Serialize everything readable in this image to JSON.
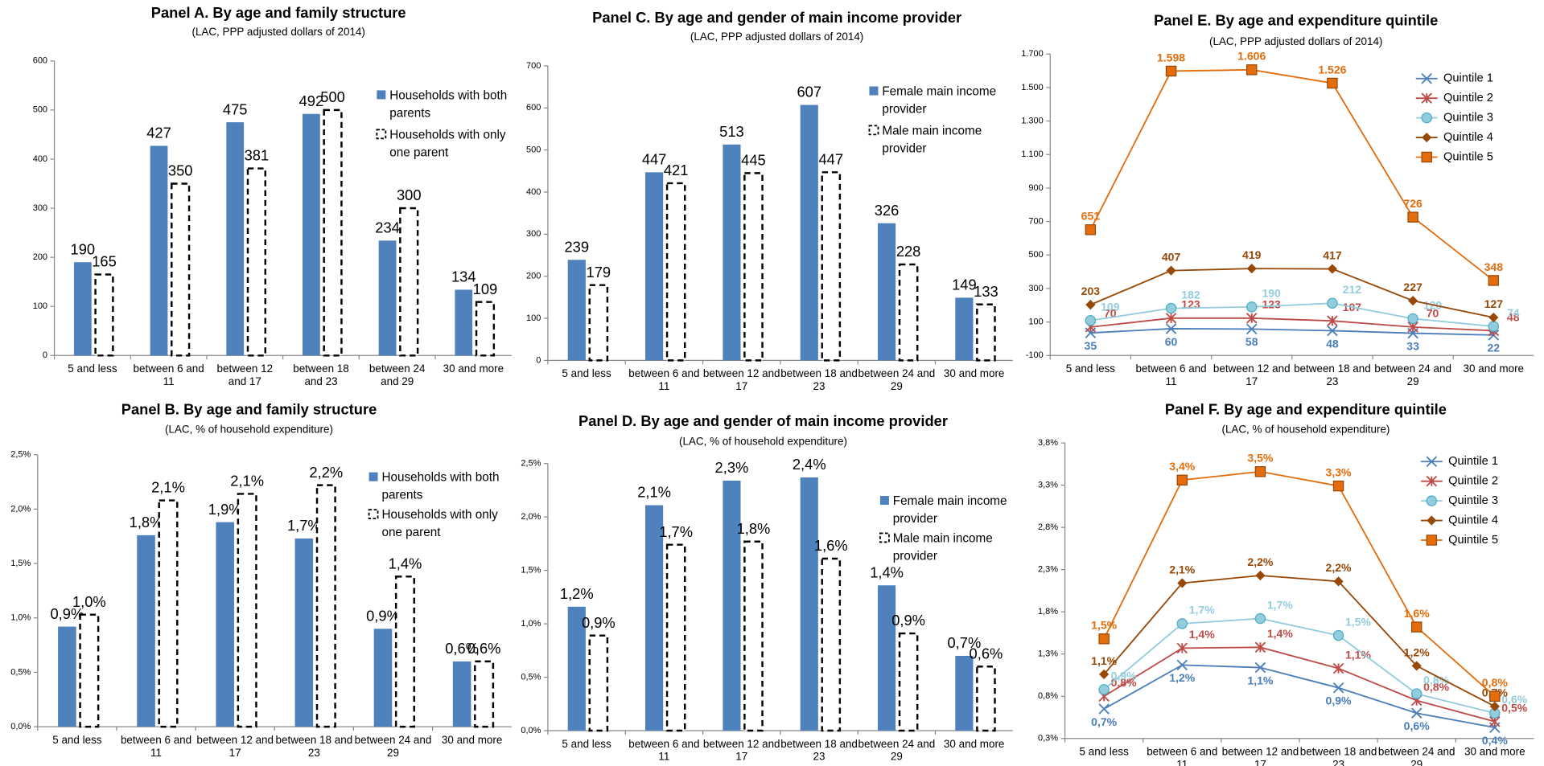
{
  "chart_data": [
    {
      "type": "bar",
      "title": "Panel A.   By age and family structure",
      "subtitle": "(LAC, PPP adjusted dollars of 2014)",
      "categories": [
        "5 and less",
        "between 6 and 11",
        "between 12 and 17",
        "between 18 and 23",
        "between 24 and 29",
        "30 and more"
      ],
      "series": [
        {
          "name": "Households with both parents",
          "color": "#4f81bd",
          "values": [
            190,
            427,
            475,
            492,
            234,
            134
          ]
        },
        {
          "name": "Households with only one parent",
          "color": "#ffffff",
          "edge": "dashed",
          "values": [
            165,
            350,
            381,
            500,
            300,
            109
          ]
        }
      ],
      "ylim": [
        0,
        600
      ],
      "yticks": [
        0,
        100,
        200,
        300,
        400,
        500,
        600
      ],
      "legend": "upper right"
    },
    {
      "type": "bar",
      "title": "Panel B. By age and family structure",
      "subtitle": "(LAC, % of household expenditure)",
      "categories": [
        "5 and less",
        "between 6 and 11",
        "between 12 and 17",
        "between 18 and 23",
        "between 24 and 29",
        "30 and more"
      ],
      "series": [
        {
          "name": "Households with both parents",
          "color": "#4f81bd",
          "values": [
            0.92,
            1.76,
            1.88,
            1.73,
            0.9,
            0.6
          ],
          "value_labels": [
            "0,9%",
            "1,8%",
            "1,9%",
            "1,7%",
            "0,9%",
            "0,6%"
          ]
        },
        {
          "name": "Households with only one parent",
          "color": "#ffffff",
          "edge": "dashed",
          "values": [
            1.03,
            2.08,
            2.14,
            2.22,
            1.38,
            0.6
          ],
          "value_labels": [
            "1,0%",
            "2,1%",
            "2,1%",
            "2,2%",
            "1,4%",
            "0,6%"
          ]
        }
      ],
      "ylim": [
        0,
        2.5
      ],
      "yticks": [
        {
          "value": 0,
          "label": "0,0%"
        },
        {
          "value": 0.5,
          "label": "0,5%"
        },
        {
          "value": 1,
          "label": "1,0%"
        },
        {
          "value": 1.5,
          "label": "1,5%"
        },
        {
          "value": 2,
          "label": "2,0%"
        },
        {
          "value": 2.5,
          "label": "2,5%"
        }
      ],
      "legend": "upper right"
    },
    {
      "type": "bar",
      "title": "Panel C. By age and gender of main income provider",
      "subtitle": "(LAC, PPP adjusted dollars of 2014)",
      "categories": [
        "5 and less",
        "between 6 and 11",
        "between 12 and 17",
        "between 18 and 23",
        "between 24 and 29",
        "30 and more"
      ],
      "series": [
        {
          "name": "Female main income provider",
          "color": "#4f81bd",
          "values": [
            239,
            447,
            513,
            607,
            326,
            149
          ]
        },
        {
          "name": "Male main income provider",
          "color": "#ffffff",
          "edge": "dashed",
          "values": [
            179,
            421,
            445,
            447,
            228,
            133
          ]
        }
      ],
      "ylim": [
        0,
        700
      ],
      "yticks": [
        0,
        100,
        200,
        300,
        400,
        500,
        600,
        700
      ],
      "legend": "upper right"
    },
    {
      "type": "bar",
      "title": "Panel D. By age and gender of main income provider",
      "subtitle": "(LAC, % of household expenditure)",
      "categories": [
        "5 and less",
        "between 6 and 11",
        "between 12 and 17",
        "between 18 and 23",
        "between 24 and 29",
        "30 and more"
      ],
      "series": [
        {
          "name": "Female main income provider",
          "color": "#4f81bd",
          "values": [
            1.16,
            2.11,
            2.34,
            2.37,
            1.36,
            0.7
          ],
          "value_labels": [
            "1,2%",
            "2,1%",
            "2,3%",
            "2,4%",
            "1,4%",
            "0,7%"
          ]
        },
        {
          "name": "Male main income provider",
          "color": "#ffffff",
          "edge": "dashed",
          "values": [
            0.89,
            1.74,
            1.77,
            1.61,
            0.91,
            0.6
          ],
          "value_labels": [
            "0,9%",
            "1,7%",
            "1,8%",
            "1,6%",
            "0,9%",
            "0,6%"
          ]
        }
      ],
      "ylim": [
        0,
        2.5
      ],
      "yticks": [
        {
          "value": 0,
          "label": "0,0%"
        },
        {
          "value": 0.5,
          "label": "0,5%"
        },
        {
          "value": 1,
          "label": "1,0%"
        },
        {
          "value": 1.5,
          "label": "1,5%"
        },
        {
          "value": 2,
          "label": "2,0%"
        },
        {
          "value": 2.5,
          "label": "2,5%"
        }
      ],
      "legend": "upper right"
    },
    {
      "type": "line",
      "title": "Panel E. By age and expenditure quintile",
      "subtitle": "(LAC, PPP adjusted dollars of 2014)",
      "categories": [
        "5 and less",
        "between 6 and 11",
        "between 12 and 17",
        "between 18 and 23",
        "between 24 and 29",
        "30 and more"
      ],
      "series": [
        {
          "name": "Quintile 1",
          "color": "#4a7ebb",
          "marker": "x",
          "values": [
            35,
            60,
            58,
            48,
            33,
            22
          ]
        },
        {
          "name": "Quintile 2",
          "color": "#be4b48",
          "marker": "asterisk",
          "values": [
            70,
            123,
            123,
            107,
            70,
            48
          ]
        },
        {
          "name": "Quintile 3",
          "color": "#93cddd",
          "marker": "circle",
          "values": [
            109,
            182,
            190,
            212,
            120,
            74
          ]
        },
        {
          "name": "Quintile 4",
          "color": "#984807",
          "marker": "diamond",
          "values": [
            203,
            407,
            419,
            417,
            227,
            127
          ]
        },
        {
          "name": "Quintile 5",
          "color": "#e46c0a",
          "marker": "square",
          "values": [
            651,
            1598,
            1606,
            1526,
            726,
            348
          ],
          "value_labels": [
            "651",
            "1.598",
            "1.606",
            "1.526",
            "726",
            "348"
          ]
        }
      ],
      "ylim": [
        -100,
        1700
      ],
      "yticks": [
        -100,
        100,
        300,
        500,
        700,
        900,
        {
          "value": 1100,
          "label": "1.100"
        },
        {
          "value": 1300,
          "label": "1.300"
        },
        {
          "value": 1500,
          "label": "1.500"
        },
        {
          "value": 1700,
          "label": "1.700"
        }
      ],
      "legend": "upper right"
    },
    {
      "type": "line",
      "title": "Panel F. By age and expenditure quintile",
      "subtitle": "(LAC, % of household expenditure)",
      "categories": [
        "5 and less",
        "between 6 and 11",
        "between 12 and 17",
        "between 18 and 23",
        "between 24 and 29",
        "30 and more"
      ],
      "series": [
        {
          "name": "Quintile 1",
          "color": "#4a7ebb",
          "marker": "x",
          "values": [
            0.65,
            1.17,
            1.14,
            0.9,
            0.6,
            0.43
          ],
          "value_labels": [
            "0,7%",
            "1,2%",
            "1,1%",
            "0,9%",
            "0,6%",
            "0,4%"
          ]
        },
        {
          "name": "Quintile 2",
          "color": "#be4b48",
          "marker": "asterisk",
          "values": [
            0.8,
            1.37,
            1.38,
            1.13,
            0.75,
            0.5
          ],
          "value_labels": [
            "0,8%",
            "1,4%",
            "1,4%",
            "1,1%",
            "0,8%",
            "0,5%"
          ]
        },
        {
          "name": "Quintile 3",
          "color": "#93cddd",
          "marker": "circle",
          "values": [
            0.88,
            1.66,
            1.72,
            1.52,
            0.83,
            0.6
          ],
          "value_labels": [
            "0,9%",
            "1,7%",
            "1,7%",
            "1,5%",
            "0,8%",
            "0,6%"
          ]
        },
        {
          "name": "Quintile 4",
          "color": "#984807",
          "marker": "diamond",
          "values": [
            1.06,
            2.14,
            2.23,
            2.16,
            1.16,
            0.68
          ],
          "value_labels": [
            "1,1%",
            "2,1%",
            "2,2%",
            "2,2%",
            "1,2%",
            "0,7%"
          ]
        },
        {
          "name": "Quintile 5",
          "color": "#e46c0a",
          "marker": "square",
          "values": [
            1.48,
            3.36,
            3.46,
            3.29,
            1.62,
            0.8
          ],
          "value_labels": [
            "1,5%",
            "3,4%",
            "3,5%",
            "3,3%",
            "1,6%",
            "0,8%"
          ]
        }
      ],
      "ylim": [
        0.3,
        3.8
      ],
      "yticks": [
        {
          "value": 0.3,
          "label": "0,3%"
        },
        {
          "value": 0.8,
          "label": "0,8%"
        },
        {
          "value": 1.3,
          "label": "1,3%"
        },
        {
          "value": 1.8,
          "label": "1,8%"
        },
        {
          "value": 2.3,
          "label": "2,3%"
        },
        {
          "value": 2.8,
          "label": "2,8%"
        },
        {
          "value": 3.3,
          "label": "3,3%"
        },
        {
          "value": 3.8,
          "label": "3,8%"
        }
      ],
      "legend": "upper right"
    }
  ]
}
